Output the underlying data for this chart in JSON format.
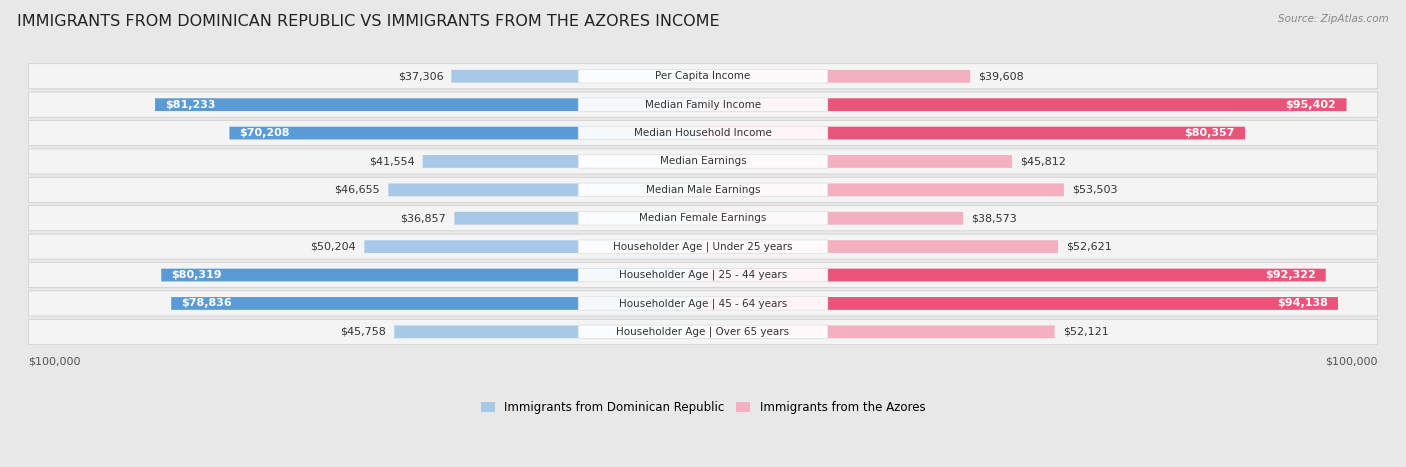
{
  "title": "IMMIGRANTS FROM DOMINICAN REPUBLIC VS IMMIGRANTS FROM THE AZORES INCOME",
  "source": "Source: ZipAtlas.com",
  "categories": [
    "Per Capita Income",
    "Median Family Income",
    "Median Household Income",
    "Median Earnings",
    "Median Male Earnings",
    "Median Female Earnings",
    "Householder Age | Under 25 years",
    "Householder Age | 25 - 44 years",
    "Householder Age | 45 - 64 years",
    "Householder Age | Over 65 years"
  ],
  "left_values": [
    37306,
    81233,
    70208,
    41554,
    46655,
    36857,
    50204,
    80319,
    78836,
    45758
  ],
  "right_values": [
    39608,
    95402,
    80357,
    45812,
    53503,
    38573,
    52621,
    92322,
    94138,
    52121
  ],
  "left_labels": [
    "$37,306",
    "$81,233",
    "$70,208",
    "$41,554",
    "$46,655",
    "$36,857",
    "$50,204",
    "$80,319",
    "$78,836",
    "$45,758"
  ],
  "right_labels": [
    "$39,608",
    "$95,402",
    "$80,357",
    "$45,812",
    "$53,503",
    "$38,573",
    "$52,621",
    "$92,322",
    "$94,138",
    "$52,121"
  ],
  "max_value": 100000,
  "left_color_light": "#a8c8e8",
  "left_color_dark": "#5b9bd5",
  "right_color_light": "#f4afc0",
  "right_color_dark": "#e8547a",
  "left_legend": "Immigrants from Dominican Republic",
  "right_legend": "Immigrants from the Azores",
  "background_color": "#e8e8e8",
  "row_bg": "#f4f4f4",
  "title_fontsize": 11.5,
  "label_fontsize": 8,
  "category_fontsize": 7.5,
  "axis_label_fontsize": 8,
  "large_threshold": 60000
}
